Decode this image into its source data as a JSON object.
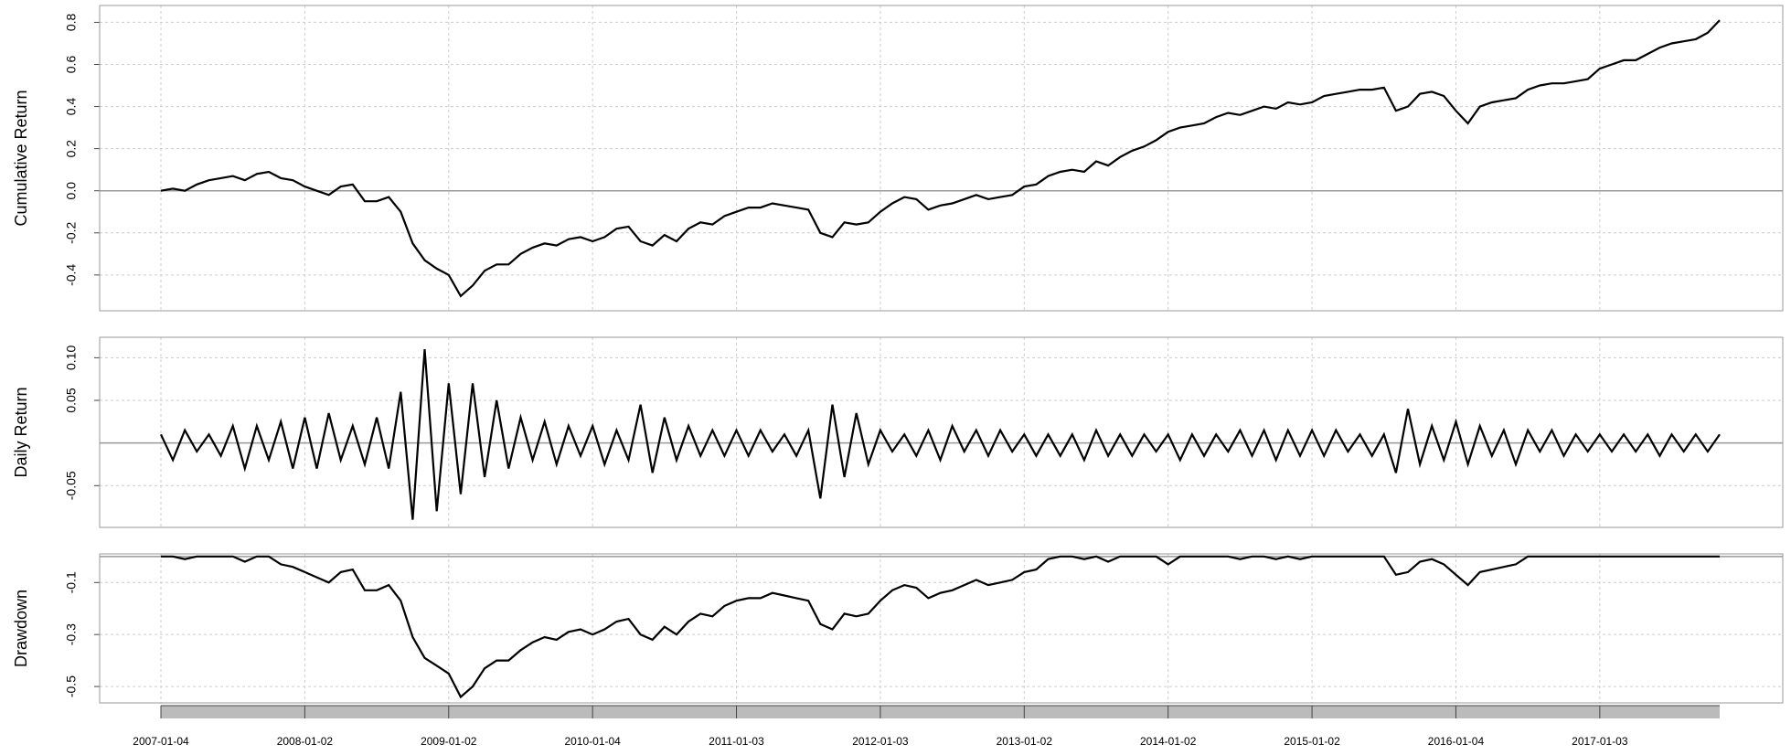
{
  "chart_data": {
    "type": "line",
    "color": "#000000",
    "grid": true,
    "x": [
      "2007-01",
      "2007-02",
      "2007-03",
      "2007-04",
      "2007-05",
      "2007-06",
      "2007-07",
      "2007-08",
      "2007-09",
      "2007-10",
      "2007-11",
      "2007-12",
      "2008-01",
      "2008-02",
      "2008-03",
      "2008-04",
      "2008-05",
      "2008-06",
      "2008-07",
      "2008-08",
      "2008-09",
      "2008-10",
      "2008-11",
      "2008-12",
      "2009-01",
      "2009-02",
      "2009-03",
      "2009-04",
      "2009-05",
      "2009-06",
      "2009-07",
      "2009-08",
      "2009-09",
      "2009-10",
      "2009-11",
      "2009-12",
      "2010-01",
      "2010-02",
      "2010-03",
      "2010-04",
      "2010-05",
      "2010-06",
      "2010-07",
      "2010-08",
      "2010-09",
      "2010-10",
      "2010-11",
      "2010-12",
      "2011-01",
      "2011-02",
      "2011-03",
      "2011-04",
      "2011-05",
      "2011-06",
      "2011-07",
      "2011-08",
      "2011-09",
      "2011-10",
      "2011-11",
      "2011-12",
      "2012-01",
      "2012-02",
      "2012-03",
      "2012-04",
      "2012-05",
      "2012-06",
      "2012-07",
      "2012-08",
      "2012-09",
      "2012-10",
      "2012-11",
      "2012-12",
      "2013-01",
      "2013-02",
      "2013-03",
      "2013-04",
      "2013-05",
      "2013-06",
      "2013-07",
      "2013-08",
      "2013-09",
      "2013-10",
      "2013-11",
      "2013-12",
      "2014-01",
      "2014-02",
      "2014-03",
      "2014-04",
      "2014-05",
      "2014-06",
      "2014-07",
      "2014-08",
      "2014-09",
      "2014-10",
      "2014-11",
      "2014-12",
      "2015-01",
      "2015-02",
      "2015-03",
      "2015-04",
      "2015-05",
      "2015-06",
      "2015-07",
      "2015-08",
      "2015-09",
      "2015-10",
      "2015-11",
      "2015-12",
      "2016-01",
      "2016-02",
      "2016-03",
      "2016-04",
      "2016-05",
      "2016-06",
      "2016-07",
      "2016-08",
      "2016-09",
      "2016-10",
      "2016-11",
      "2016-12",
      "2017-01",
      "2017-02",
      "2017-03",
      "2017-04",
      "2017-05",
      "2017-06",
      "2017-07",
      "2017-08",
      "2017-09",
      "2017-10",
      "2017-11"
    ],
    "xticks": [
      {
        "value": "2007-01",
        "label": "2007-01-04"
      },
      {
        "value": "2008-01",
        "label": "2008-01-02"
      },
      {
        "value": "2009-01",
        "label": "2009-01-02"
      },
      {
        "value": "2010-01",
        "label": "2010-01-04"
      },
      {
        "value": "2011-01",
        "label": "2011-01-03"
      },
      {
        "value": "2012-01",
        "label": "2012-01-03"
      },
      {
        "value": "2013-01",
        "label": "2013-01-02"
      },
      {
        "value": "2014-01",
        "label": "2014-01-02"
      },
      {
        "value": "2015-01",
        "label": "2015-01-02"
      },
      {
        "value": "2016-01",
        "label": "2016-01-04"
      },
      {
        "value": "2017-01",
        "label": "2017-01-03"
      }
    ],
    "panels": [
      {
        "ylabel": "Cumulative Return",
        "ylim": [
          -0.57,
          0.88
        ],
        "yticks": [
          -0.4,
          -0.2,
          {
            "value": 0,
            "label": "0.0"
          },
          0.2,
          0.4,
          0.6,
          0.8
        ],
        "values": [
          0.0,
          0.01,
          0.0,
          0.03,
          0.05,
          0.06,
          0.07,
          0.05,
          0.08,
          0.09,
          0.06,
          0.05,
          0.02,
          0.0,
          -0.02,
          0.02,
          0.03,
          -0.05,
          -0.05,
          -0.03,
          -0.1,
          -0.25,
          -0.33,
          -0.37,
          -0.4,
          -0.5,
          -0.45,
          -0.38,
          -0.35,
          -0.35,
          -0.3,
          -0.27,
          -0.25,
          -0.26,
          -0.23,
          -0.22,
          -0.24,
          -0.22,
          -0.18,
          -0.17,
          -0.24,
          -0.26,
          -0.21,
          -0.24,
          -0.18,
          -0.15,
          -0.16,
          -0.12,
          -0.1,
          -0.08,
          -0.08,
          -0.06,
          -0.07,
          -0.08,
          -0.09,
          -0.2,
          -0.22,
          -0.15,
          -0.16,
          -0.15,
          -0.1,
          -0.06,
          -0.03,
          -0.04,
          -0.09,
          -0.07,
          -0.06,
          -0.04,
          -0.02,
          -0.04,
          -0.03,
          -0.02,
          0.02,
          0.03,
          0.07,
          0.09,
          0.1,
          0.09,
          0.14,
          0.12,
          0.16,
          0.19,
          0.21,
          0.24,
          0.28,
          0.3,
          0.31,
          0.32,
          0.35,
          0.37,
          0.36,
          0.38,
          0.4,
          0.39,
          0.42,
          0.41,
          0.42,
          0.45,
          0.46,
          0.47,
          0.48,
          0.48,
          0.49,
          0.38,
          0.4,
          0.46,
          0.47,
          0.45,
          0.38,
          0.32,
          0.4,
          0.42,
          0.43,
          0.44,
          0.48,
          0.5,
          0.51,
          0.51,
          0.52,
          0.53,
          0.58,
          0.6,
          0.62,
          0.62,
          0.65,
          0.68,
          0.7,
          0.71,
          0.72,
          0.75,
          0.81
        ]
      },
      {
        "ylabel": "Daily Return",
        "ylim": [
          -0.099,
          0.124
        ],
        "yticks": [
          -0.05,
          0.05,
          {
            "value": 0.1,
            "label": "0.10"
          }
        ],
        "values": [
          0.01,
          -0.02,
          0.015,
          -0.01,
          0.01,
          -0.015,
          0.02,
          -0.03,
          0.02,
          -0.02,
          0.025,
          -0.03,
          0.03,
          -0.03,
          0.035,
          -0.02,
          0.02,
          -0.025,
          0.03,
          -0.03,
          0.06,
          -0.09,
          0.11,
          -0.08,
          0.07,
          -0.06,
          0.07,
          -0.04,
          0.05,
          -0.03,
          0.03,
          -0.02,
          0.025,
          -0.025,
          0.02,
          -0.015,
          0.02,
          -0.025,
          0.015,
          -0.02,
          0.045,
          -0.035,
          0.03,
          -0.02,
          0.02,
          -0.015,
          0.015,
          -0.015,
          0.015,
          -0.015,
          0.015,
          -0.01,
          0.01,
          -0.015,
          0.015,
          -0.065,
          0.045,
          -0.04,
          0.035,
          -0.025,
          0.015,
          -0.01,
          0.01,
          -0.015,
          0.015,
          -0.02,
          0.02,
          -0.01,
          0.015,
          -0.015,
          0.015,
          -0.01,
          0.01,
          -0.015,
          0.01,
          -0.015,
          0.01,
          -0.02,
          0.015,
          -0.015,
          0.01,
          -0.015,
          0.01,
          -0.01,
          0.01,
          -0.02,
          0.01,
          -0.015,
          0.01,
          -0.01,
          0.015,
          -0.015,
          0.015,
          -0.02,
          0.015,
          -0.015,
          0.015,
          -0.015,
          0.015,
          -0.01,
          0.01,
          -0.015,
          0.01,
          -0.035,
          0.04,
          -0.025,
          0.02,
          -0.02,
          0.025,
          -0.025,
          0.02,
          -0.015,
          0.015,
          -0.025,
          0.015,
          -0.01,
          0.015,
          -0.015,
          0.01,
          -0.01,
          0.01,
          -0.01,
          0.01,
          -0.01,
          0.01,
          -0.015,
          0.01,
          -0.01,
          0.01,
          -0.01,
          0.01
        ]
      },
      {
        "ylabel": "Drawdown",
        "ylim": [
          -0.563,
          0.01
        ],
        "yticks": [
          -0.5,
          -0.3,
          -0.1
        ],
        "values": [
          0,
          0,
          -0.01,
          0,
          0,
          0,
          0,
          -0.02,
          0,
          0,
          -0.03,
          -0.04,
          -0.06,
          -0.08,
          -0.1,
          -0.06,
          -0.05,
          -0.13,
          -0.13,
          -0.11,
          -0.17,
          -0.31,
          -0.39,
          -0.42,
          -0.45,
          -0.54,
          -0.5,
          -0.43,
          -0.4,
          -0.4,
          -0.36,
          -0.33,
          -0.31,
          -0.32,
          -0.29,
          -0.28,
          -0.3,
          -0.28,
          -0.25,
          -0.24,
          -0.3,
          -0.32,
          -0.27,
          -0.3,
          -0.25,
          -0.22,
          -0.23,
          -0.19,
          -0.17,
          -0.16,
          -0.16,
          -0.14,
          -0.15,
          -0.16,
          -0.17,
          -0.26,
          -0.28,
          -0.22,
          -0.23,
          -0.22,
          -0.17,
          -0.13,
          -0.11,
          -0.12,
          -0.16,
          -0.14,
          -0.13,
          -0.11,
          -0.09,
          -0.11,
          -0.1,
          -0.09,
          -0.06,
          -0.05,
          -0.01,
          0,
          0,
          -0.01,
          0,
          -0.02,
          0,
          0,
          0,
          0,
          -0.03,
          0,
          0,
          0,
          0,
          0,
          -0.01,
          0,
          0,
          -0.01,
          0,
          -0.01,
          0,
          0,
          0,
          0,
          0,
          0,
          0,
          -0.07,
          -0.06,
          -0.02,
          -0.01,
          -0.03,
          -0.07,
          -0.11,
          -0.06,
          -0.05,
          -0.04,
          -0.03,
          0,
          0,
          0,
          0,
          0,
          0,
          0,
          0,
          0,
          0,
          0,
          0,
          0,
          0,
          0,
          0,
          0
        ]
      }
    ]
  }
}
